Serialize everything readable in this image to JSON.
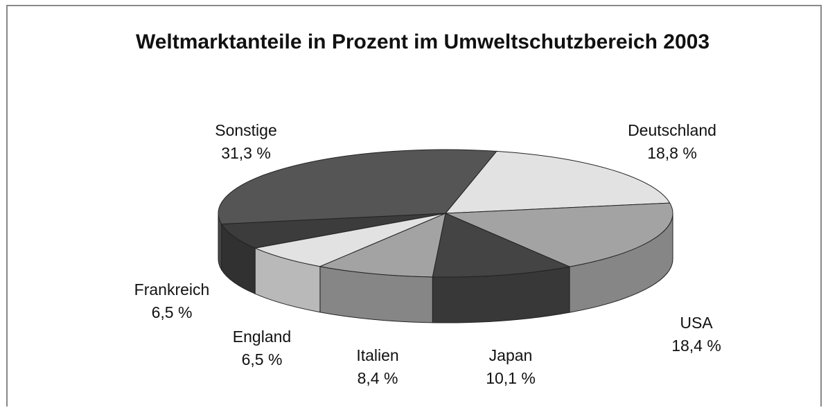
{
  "chart_data": {
    "type": "pie",
    "title": "Weltmarktanteile in Prozent im Umweltschutzbereich 2003",
    "categories": [
      "Deutschland",
      "USA",
      "Japan",
      "Italien",
      "England",
      "Frankreich",
      "Sonstige"
    ],
    "values": [
      18.8,
      18.4,
      10.1,
      8.4,
      6.5,
      6.5,
      31.3
    ],
    "value_labels": [
      "18,8 %",
      "18,4 %",
      "10,1 %",
      "8,4 %",
      "6,5 %",
      "6,5 %",
      "31,3 %"
    ],
    "colors": [
      "#e2e2e2",
      "#a3a3a3",
      "#444444",
      "#a3a3a3",
      "#e2e2e2",
      "#3c3c3c",
      "#555555"
    ]
  }
}
